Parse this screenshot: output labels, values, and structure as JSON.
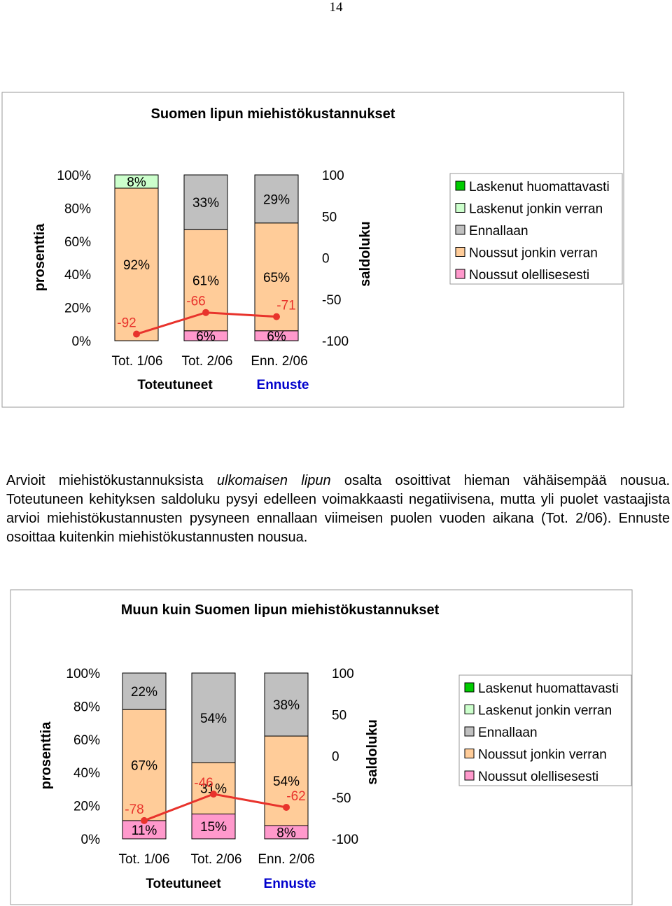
{
  "page_number": "14",
  "paragraph": {
    "p1": "Arvioit miehistökustannuksista ",
    "p2": "ulkomaisen lipun",
    "p3": " osalta osoittivat hieman vähäisempää nousua. Toteutuneen kehityksen saldoluku pysyi edelleen voimakkaasti negatiivisena, mutta yli puolet vastaajista arvioi miehistökustannusten pysyneen ennallaan viimeisen puolen vuoden aikana (Tot. 2/06). Ennuste osoittaa kuitenkin miehistökustannusten nousua."
  },
  "colors": {
    "Laskenut huomattavasti": "#00cc00",
    "Laskenut jonkin verran": "#ccffcc",
    "Ennallaan": "#c0c0c0",
    "Noussut jonkin verran": "#ffcc99",
    "Noussut olellisesesti": "#ff99cc",
    "saldo_line": "#e8332c",
    "Toteutuneet": "#000000",
    "Ennuste": "#0000cc"
  },
  "chart_data": [
    {
      "type": "bar",
      "title": "Suomen lipun miehistökustannukset",
      "ylabel": "prosenttia",
      "y2label": "saldoluku",
      "categories": [
        "Tot. 1/06",
        "Tot. 2/06",
        "Enn. 2/06"
      ],
      "group_labels": [
        "Toteutuneet",
        "Ennuste"
      ],
      "yticks": [
        "100%",
        "80%",
        "60%",
        "40%",
        "20%",
        "0%"
      ],
      "y2ticks": [
        "100",
        "50",
        "0",
        "-50",
        "-100"
      ],
      "ylim": [
        0,
        100
      ],
      "y2lim": [
        -100,
        100
      ],
      "legend": [
        "Laskenut huomattavasti",
        "Laskenut jonkin verran",
        "Ennallaan",
        "Noussut jonkin verran",
        "Noussut olellisesesti"
      ],
      "legend_position": "right",
      "series": [
        {
          "name": "Noussut olellisesesti",
          "values": [
            0,
            6,
            6
          ],
          "labels": [
            "",
            "6%",
            "6%"
          ]
        },
        {
          "name": "Noussut jonkin verran",
          "values": [
            92,
            61,
            65
          ],
          "labels": [
            "92%",
            "61%",
            "65%"
          ]
        },
        {
          "name": "Ennallaan",
          "values": [
            0,
            33,
            29
          ],
          "labels": [
            "",
            "33%",
            "29%"
          ]
        },
        {
          "name": "Laskenut jonkin verran",
          "values": [
            8,
            0,
            0
          ],
          "labels": [
            "8%",
            "",
            ""
          ]
        },
        {
          "name": "Laskenut huomattavasti",
          "values": [
            0,
            0,
            0
          ],
          "labels": [
            "",
            "",
            ""
          ]
        }
      ],
      "saldo": {
        "values": [
          -92,
          -66,
          -71
        ],
        "labels": [
          "-92",
          "-66",
          "-71"
        ]
      }
    },
    {
      "type": "bar",
      "title": "Muun kuin Suomen lipun miehistökustannukset",
      "ylabel": "prosenttia",
      "y2label": "saldoluku",
      "categories": [
        "Tot. 1/06",
        "Tot. 2/06",
        "Enn. 2/06"
      ],
      "group_labels": [
        "Toteutuneet",
        "Ennuste"
      ],
      "yticks": [
        "100%",
        "80%",
        "60%",
        "40%",
        "20%",
        "0%"
      ],
      "y2ticks": [
        "100",
        "50",
        "0",
        "-50",
        "-100"
      ],
      "ylim": [
        0,
        100
      ],
      "y2lim": [
        -100,
        100
      ],
      "legend": [
        "Laskenut huomattavasti",
        "Laskenut jonkin verran",
        "Ennallaan",
        "Noussut jonkin verran",
        "Noussut olellisesesti"
      ],
      "legend_position": "right",
      "series": [
        {
          "name": "Noussut olellisesesti",
          "values": [
            11,
            15,
            8
          ],
          "labels": [
            "11%",
            "15%",
            "8%"
          ]
        },
        {
          "name": "Noussut jonkin verran",
          "values": [
            67,
            31,
            54
          ],
          "labels": [
            "67%",
            "31%",
            "54%"
          ]
        },
        {
          "name": "Ennallaan",
          "values": [
            22,
            54,
            38
          ],
          "labels": [
            "22%",
            "54%",
            "38%"
          ]
        },
        {
          "name": "Laskenut jonkin verran",
          "values": [
            0,
            0,
            0
          ],
          "labels": [
            "",
            "",
            ""
          ]
        },
        {
          "name": "Laskenut huomattavasti",
          "values": [
            0,
            0,
            0
          ],
          "labels": [
            "",
            "",
            ""
          ]
        }
      ],
      "saldo": {
        "values": [
          -78,
          -46,
          -62
        ],
        "labels": [
          "-78",
          "-46",
          "-62"
        ]
      }
    }
  ]
}
